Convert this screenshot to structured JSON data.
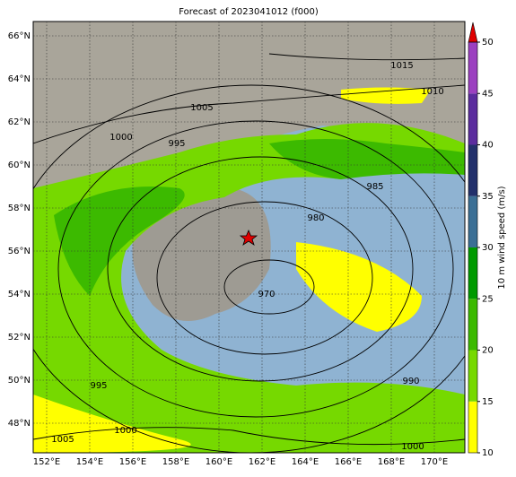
{
  "title": "Forecast of 2023041012 (f000)",
  "lat_labels": [
    "66°N",
    "64°N",
    "62°N",
    "60°N",
    "58°N",
    "56°N",
    "54°N",
    "52°N",
    "50°N",
    "48°N"
  ],
  "lon_labels": [
    "152°E",
    "154°E",
    "156°E",
    "158°E",
    "160°E",
    "162°E",
    "164°E",
    "166°E",
    "168°E",
    "170°E"
  ],
  "contour_labels": [
    1015,
    1010,
    1005,
    1000,
    995,
    985,
    980,
    970,
    995,
    1000,
    1005,
    990,
    1000
  ],
  "colorbar": {
    "label": "10 m wind speed (m/s)",
    "ticks": [
      10,
      15,
      20,
      25,
      30,
      35,
      40,
      45,
      50
    ],
    "colors": [
      "#ffff00",
      "#76d900",
      "#3cba00",
      "#009a00",
      "#3b6f95",
      "#22306b",
      "#5b2c9e",
      "#9c40c0"
    ],
    "extend_color": "#e00000"
  }
}
